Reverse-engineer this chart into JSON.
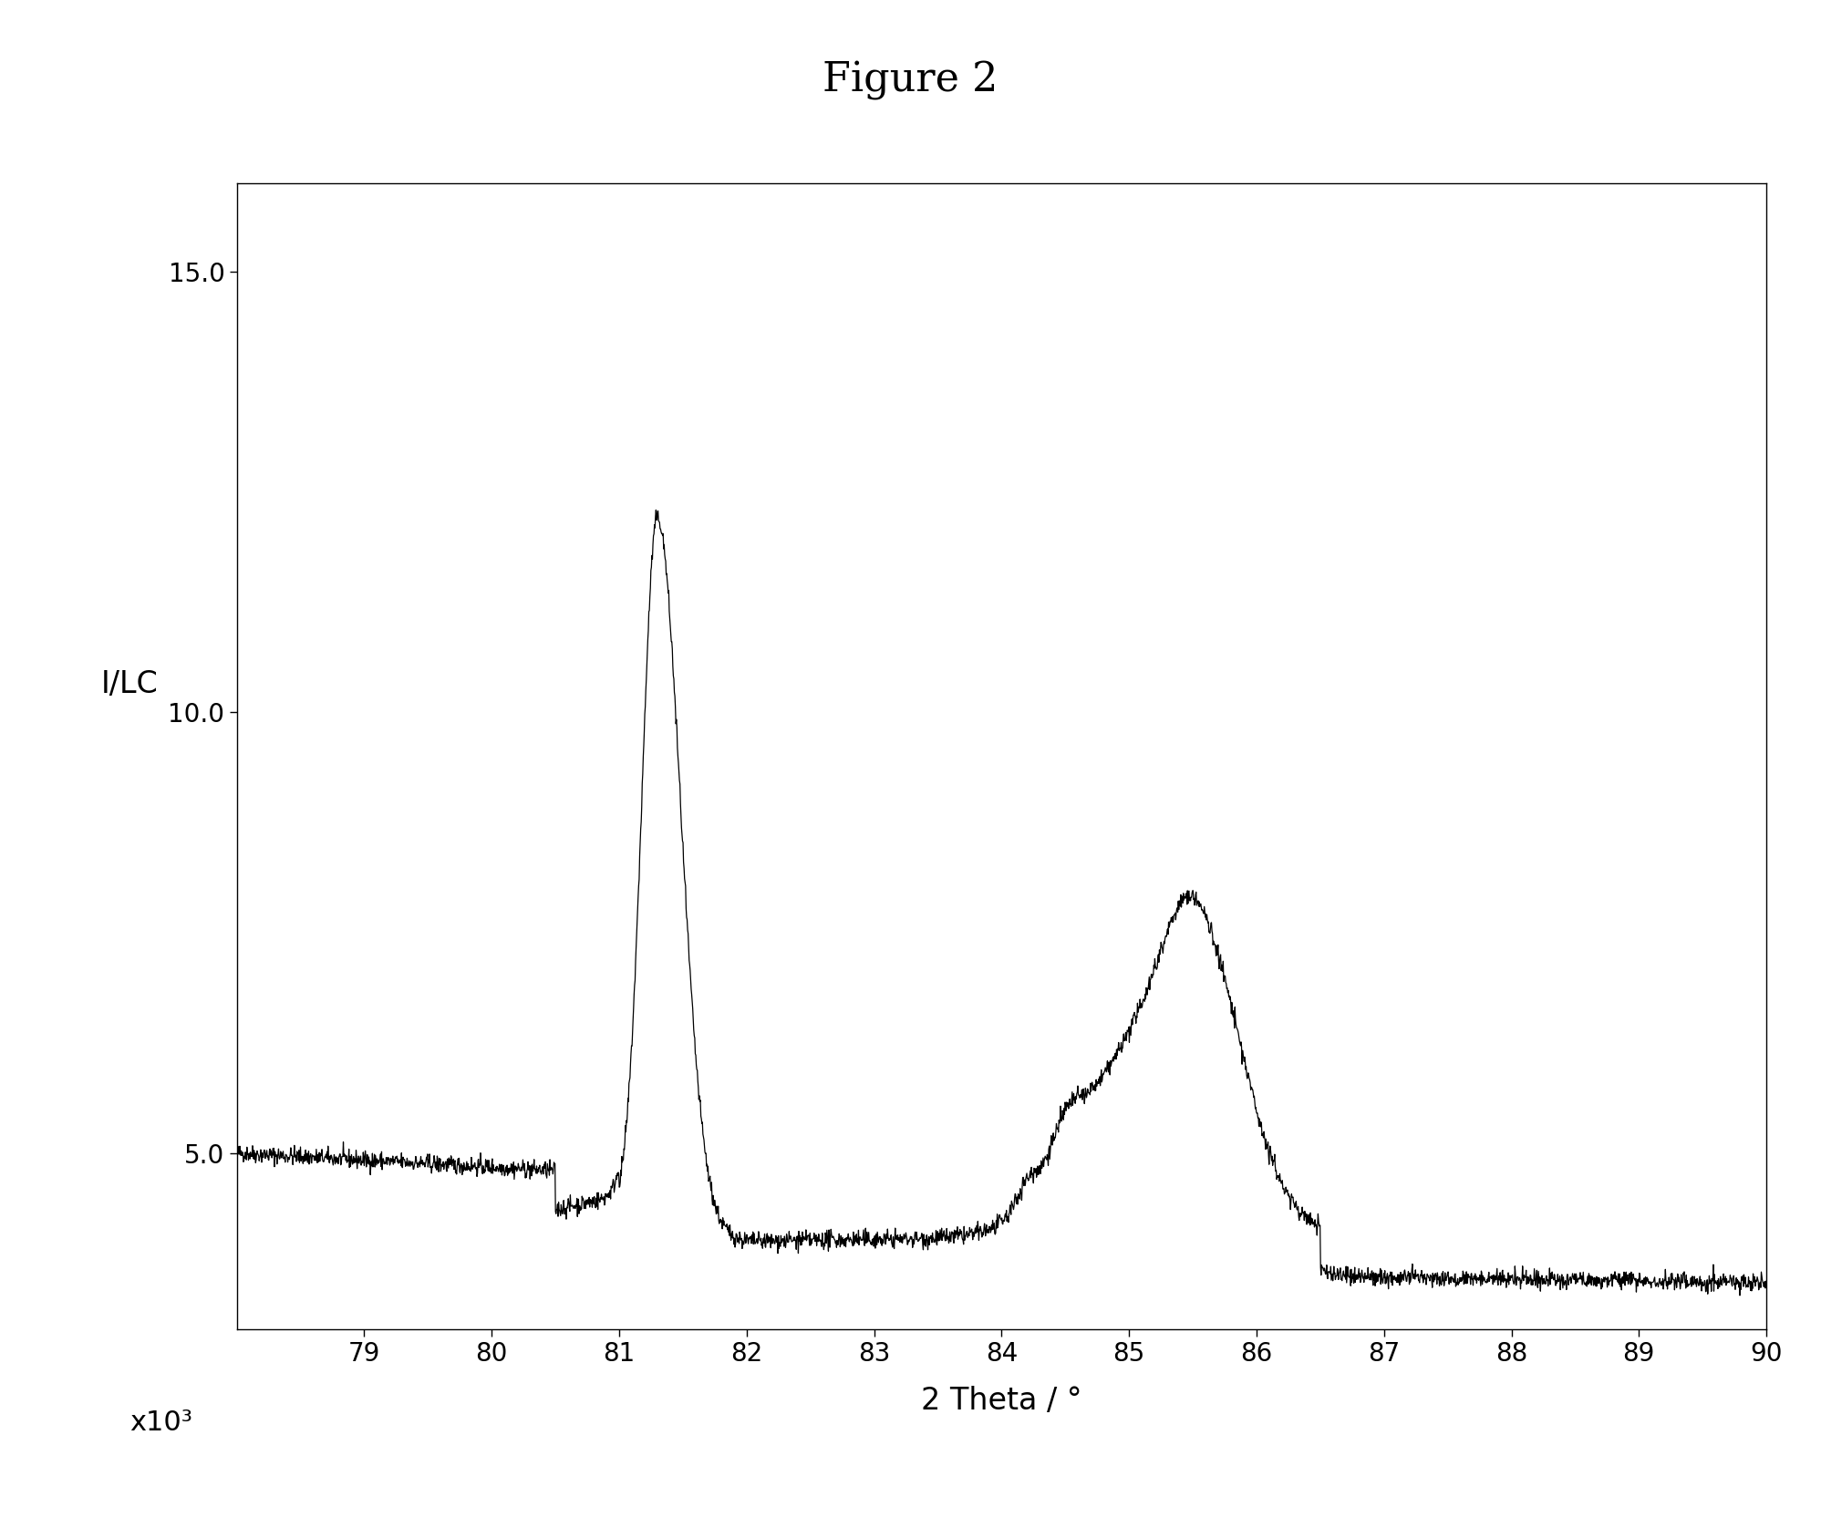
{
  "title": "Figure 2",
  "xlabel": "2 Theta / °",
  "ylabel": "I/LC",
  "scale_label": "x10³",
  "xmin": 78.0,
  "xmax": 90.0,
  "ymin": 3.0,
  "ymax": 16.0,
  "yticks": [
    5.0,
    10.0,
    15.0
  ],
  "xticks": [
    79,
    80,
    81,
    82,
    83,
    84,
    85,
    86,
    87,
    88,
    89,
    90
  ],
  "line_color": "#000000",
  "background_color": "#ffffff",
  "title_fontsize": 32,
  "label_fontsize": 24,
  "tick_fontsize": 20,
  "noise_seed": 42,
  "noise_level": 0.05
}
